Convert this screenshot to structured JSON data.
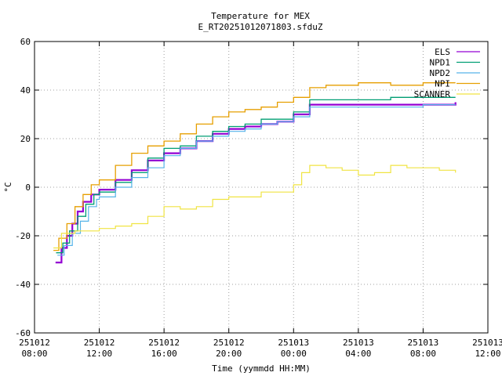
{
  "chart_data": {
    "type": "line",
    "title": "Temperature for MEX",
    "subtitle": "E_RT20251012071803.sfduZ",
    "xlabel": "Time (yymmdd HH:MM)",
    "ylabel": "°C",
    "xlim": [
      "2025-10-12 08:00",
      "2025-10-13 12:00"
    ],
    "ylim": [
      -60,
      60
    ],
    "y_ticks": [
      -60,
      -40,
      -20,
      0,
      20,
      40,
      60
    ],
    "x_ticks": [
      {
        "date": "251012",
        "time": "08:00",
        "t": "2025-10-12 08:00"
      },
      {
        "date": "251012",
        "time": "12:00",
        "t": "2025-10-12 12:00"
      },
      {
        "date": "251012",
        "time": "16:00",
        "t": "2025-10-12 16:00"
      },
      {
        "date": "251012",
        "time": "20:00",
        "t": "2025-10-12 20:00"
      },
      {
        "date": "251013",
        "time": "00:00",
        "t": "2025-10-13 00:00"
      },
      {
        "date": "251013",
        "time": "04:00",
        "t": "2025-10-13 04:00"
      },
      {
        "date": "251013",
        "time": "08:00",
        "t": "2025-10-13 08:00"
      },
      {
        "date": "251013",
        "time": "12:00",
        "t": "2025-10-13 12:00"
      }
    ],
    "grid": true,
    "legend_position": "top-right",
    "series": [
      {
        "name": "ELS",
        "color": "#9400d3",
        "width": 2.2,
        "points": [
          [
            "2025-10-12 09:18",
            -31
          ],
          [
            "2025-10-12 09:40",
            -25
          ],
          [
            "2025-10-12 10:00",
            -20
          ],
          [
            "2025-10-12 10:20",
            -15
          ],
          [
            "2025-10-12 10:40",
            -10
          ],
          [
            "2025-10-12 11:00",
            -6
          ],
          [
            "2025-10-12 11:30",
            -3
          ],
          [
            "2025-10-12 12:00",
            -1
          ],
          [
            "2025-10-12 13:00",
            3
          ],
          [
            "2025-10-12 14:00",
            7
          ],
          [
            "2025-10-12 15:00",
            11
          ],
          [
            "2025-10-12 16:00",
            14
          ],
          [
            "2025-10-12 17:00",
            16
          ],
          [
            "2025-10-12 18:00",
            19
          ],
          [
            "2025-10-12 19:00",
            22
          ],
          [
            "2025-10-12 20:00",
            24
          ],
          [
            "2025-10-12 21:00",
            25
          ],
          [
            "2025-10-12 22:00",
            26
          ],
          [
            "2025-10-12 23:00",
            27
          ],
          [
            "2025-10-13 00:00",
            30
          ],
          [
            "2025-10-13 01:00",
            34
          ],
          [
            "2025-10-13 02:00",
            34
          ],
          [
            "2025-10-13 04:00",
            34
          ],
          [
            "2025-10-13 06:00",
            34
          ],
          [
            "2025-10-13 08:00",
            34
          ],
          [
            "2025-10-13 10:00",
            35
          ]
        ]
      },
      {
        "name": "NPD1",
        "color": "#009e73",
        "width": 1.3,
        "points": [
          [
            "2025-10-12 09:20",
            -27
          ],
          [
            "2025-10-12 09:45",
            -23
          ],
          [
            "2025-10-12 10:10",
            -18
          ],
          [
            "2025-10-12 10:40",
            -12
          ],
          [
            "2025-10-12 11:10",
            -7
          ],
          [
            "2025-10-12 11:40",
            -3
          ],
          [
            "2025-10-12 12:00",
            -2
          ],
          [
            "2025-10-12 13:00",
            2
          ],
          [
            "2025-10-12 14:00",
            6
          ],
          [
            "2025-10-12 15:00",
            12
          ],
          [
            "2025-10-12 16:00",
            16
          ],
          [
            "2025-10-12 17:00",
            17
          ],
          [
            "2025-10-12 18:00",
            21
          ],
          [
            "2025-10-12 19:00",
            23
          ],
          [
            "2025-10-12 20:00",
            25
          ],
          [
            "2025-10-12 21:00",
            26
          ],
          [
            "2025-10-12 22:00",
            28
          ],
          [
            "2025-10-12 23:00",
            28
          ],
          [
            "2025-10-13 00:00",
            31
          ],
          [
            "2025-10-13 01:00",
            36
          ],
          [
            "2025-10-13 02:00",
            36
          ],
          [
            "2025-10-13 04:00",
            36
          ],
          [
            "2025-10-13 06:00",
            37
          ],
          [
            "2025-10-13 08:00",
            37
          ],
          [
            "2025-10-13 10:00",
            37
          ]
        ]
      },
      {
        "name": "NPD2",
        "color": "#56b4e9",
        "width": 1.2,
        "points": [
          [
            "2025-10-12 09:25",
            -28
          ],
          [
            "2025-10-12 09:50",
            -24
          ],
          [
            "2025-10-12 10:20",
            -19
          ],
          [
            "2025-10-12 10:50",
            -14
          ],
          [
            "2025-10-12 11:20",
            -8
          ],
          [
            "2025-10-12 11:50",
            -5
          ],
          [
            "2025-10-12 12:00",
            -4
          ],
          [
            "2025-10-12 13:00",
            0
          ],
          [
            "2025-10-12 14:00",
            4
          ],
          [
            "2025-10-12 15:00",
            8
          ],
          [
            "2025-10-12 16:00",
            13
          ],
          [
            "2025-10-12 17:00",
            16
          ],
          [
            "2025-10-12 18:00",
            19
          ],
          [
            "2025-10-12 19:00",
            21
          ],
          [
            "2025-10-12 20:00",
            23
          ],
          [
            "2025-10-12 21:00",
            24
          ],
          [
            "2025-10-12 22:00",
            26
          ],
          [
            "2025-10-12 23:00",
            27
          ],
          [
            "2025-10-13 00:00",
            29
          ],
          [
            "2025-10-13 01:00",
            33
          ],
          [
            "2025-10-13 02:00",
            33
          ],
          [
            "2025-10-13 04:00",
            33
          ],
          [
            "2025-10-13 06:00",
            33
          ],
          [
            "2025-10-13 08:00",
            34
          ],
          [
            "2025-10-13 10:00",
            34
          ]
        ]
      },
      {
        "name": "NPI",
        "color": "#e69f00",
        "width": 1.3,
        "points": [
          [
            "2025-10-12 09:10",
            -26
          ],
          [
            "2025-10-12 09:30",
            -21
          ],
          [
            "2025-10-12 10:00",
            -15
          ],
          [
            "2025-10-12 10:30",
            -8
          ],
          [
            "2025-10-12 11:00",
            -3
          ],
          [
            "2025-10-12 11:30",
            1
          ],
          [
            "2025-10-12 12:00",
            3
          ],
          [
            "2025-10-12 13:00",
            9
          ],
          [
            "2025-10-12 14:00",
            14
          ],
          [
            "2025-10-12 15:00",
            17
          ],
          [
            "2025-10-12 16:00",
            19
          ],
          [
            "2025-10-12 17:00",
            22
          ],
          [
            "2025-10-12 18:00",
            26
          ],
          [
            "2025-10-12 19:00",
            29
          ],
          [
            "2025-10-12 20:00",
            31
          ],
          [
            "2025-10-12 21:00",
            32
          ],
          [
            "2025-10-12 22:00",
            33
          ],
          [
            "2025-10-12 23:00",
            35
          ],
          [
            "2025-10-13 00:00",
            37
          ],
          [
            "2025-10-13 01:00",
            41
          ],
          [
            "2025-10-13 02:00",
            42
          ],
          [
            "2025-10-13 04:00",
            43
          ],
          [
            "2025-10-13 06:00",
            42
          ],
          [
            "2025-10-13 08:00",
            43
          ],
          [
            "2025-10-13 10:00",
            43
          ]
        ]
      },
      {
        "name": "SCANNER",
        "color": "#f0e442",
        "width": 1.2,
        "points": [
          [
            "2025-10-12 09:10",
            -25
          ],
          [
            "2025-10-12 09:40",
            -19
          ],
          [
            "2025-10-12 10:30",
            -18
          ],
          [
            "2025-10-12 12:00",
            -17
          ],
          [
            "2025-10-12 13:00",
            -16
          ],
          [
            "2025-10-12 14:00",
            -15
          ],
          [
            "2025-10-12 15:00",
            -12
          ],
          [
            "2025-10-12 16:00",
            -8
          ],
          [
            "2025-10-12 17:00",
            -9
          ],
          [
            "2025-10-12 18:00",
            -8
          ],
          [
            "2025-10-12 19:00",
            -5
          ],
          [
            "2025-10-12 20:00",
            -4
          ],
          [
            "2025-10-12 21:00",
            -4
          ],
          [
            "2025-10-12 22:00",
            -2
          ],
          [
            "2025-10-12 23:00",
            -2
          ],
          [
            "2025-10-13 00:00",
            1
          ],
          [
            "2025-10-13 00:30",
            6
          ],
          [
            "2025-10-13 01:00",
            9
          ],
          [
            "2025-10-13 02:00",
            8
          ],
          [
            "2025-10-13 03:00",
            7
          ],
          [
            "2025-10-13 04:00",
            5
          ],
          [
            "2025-10-13 05:00",
            6
          ],
          [
            "2025-10-13 06:00",
            9
          ],
          [
            "2025-10-13 07:00",
            8
          ],
          [
            "2025-10-13 08:00",
            8
          ],
          [
            "2025-10-13 09:00",
            7
          ],
          [
            "2025-10-13 10:00",
            6
          ]
        ]
      }
    ]
  }
}
